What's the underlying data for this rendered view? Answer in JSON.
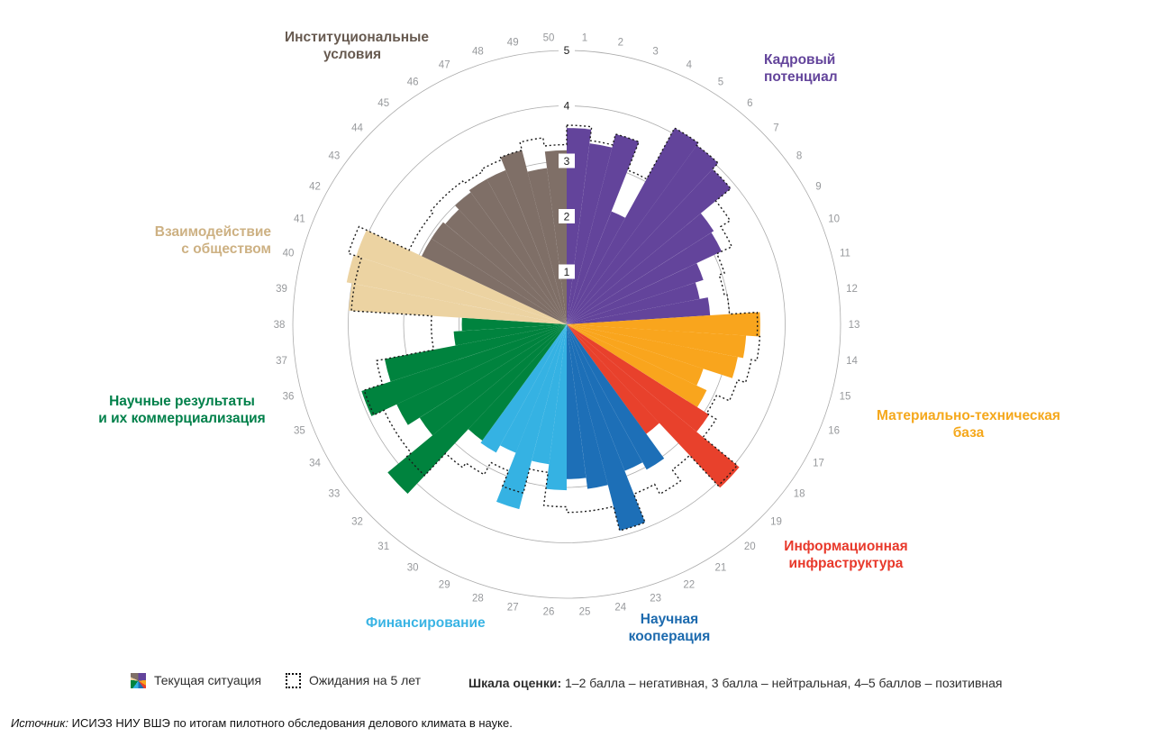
{
  "chart_data": {
    "type": "polar_bar",
    "description": "Rose chart: business climate in science, 50 indicators grouped in 8 areas, ratings 1-5",
    "sector_count": 50,
    "angle_per_sector": 7.2,
    "ring_labels": [
      "1",
      "2",
      "3",
      "4",
      "5"
    ],
    "ylim": [
      0,
      5
    ],
    "grid": "circles",
    "legend_position": "bottom",
    "series": [
      {
        "id": "current",
        "name": "Текущая ситуация",
        "style": "filled"
      },
      {
        "id": "expected",
        "name": "Ожидания на 5 лет",
        "style": "dotted-outline"
      }
    ],
    "groups": [
      {
        "id": "kadry",
        "label_lines": [
          "Кадровый",
          "потенциал"
        ],
        "color": "#63449B",
        "label_color": "#63449B",
        "sectors": [
          1,
          12
        ]
      },
      {
        "id": "material",
        "label_lines": [
          "Материально-техническая",
          "база"
        ],
        "color": "#F9A51D",
        "label_color": "#F5A81C",
        "sectors": [
          13,
          17
        ]
      },
      {
        "id": "inform",
        "label_lines": [
          "Информационная",
          "инфраструктура"
        ],
        "color": "#E8412C",
        "label_color": "#E8392B",
        "sectors": [
          18,
          20
        ]
      },
      {
        "id": "kooper",
        "label_lines": [
          "Научная",
          "кооперация"
        ],
        "color": "#1D6FB7",
        "label_color": "#1C6AAE",
        "sectors": [
          21,
          25
        ]
      },
      {
        "id": "finans",
        "label_lines": [
          "Финансирование"
        ],
        "color": "#35B2E3",
        "label_color": "#3AB4E4",
        "sectors": [
          26,
          30
        ]
      },
      {
        "id": "nauch",
        "label_lines": [
          "Научные результаты",
          "и их коммерциализация"
        ],
        "color": "#00833E",
        "label_color": "#00804A",
        "sectors": [
          31,
          38
        ]
      },
      {
        "id": "vzaim",
        "label_lines": [
          "Взаимодействие",
          "с обществом"
        ],
        "color": "#ECD3A2",
        "label_color": "#CDB183",
        "sectors": [
          39,
          41
        ]
      },
      {
        "id": "instit",
        "label_lines": [
          "Институциональные",
          "условия"
        ],
        "color": "#7F6F67",
        "label_color": "#675A50",
        "sectors": [
          42,
          50
        ]
      }
    ],
    "sectors": [
      {
        "n": 1,
        "current": 3.6,
        "expected": 3.65
      },
      {
        "n": 2,
        "current": 3.35,
        "expected": 3.4
      },
      {
        "n": 3,
        "current": 3.6,
        "expected": 3.6
      },
      {
        "n": 4,
        "current": 2.25,
        "expected": 3.05
      },
      {
        "n": 5,
        "current": 4.1,
        "expected": 4.1
      },
      {
        "n": 6,
        "current": 4.05,
        "expected": 4.05
      },
      {
        "n": 7,
        "current": 3.9,
        "expected": 3.9
      },
      {
        "n": 8,
        "current": 3.2,
        "expected": 3.55
      },
      {
        "n": 9,
        "current": 3.15,
        "expected": 3.35
      },
      {
        "n": 10,
        "current": 2.65,
        "expected": 3.05
      },
      {
        "n": 11,
        "current": 2.5,
        "expected": 2.95
      },
      {
        "n": 12,
        "current": 2.65,
        "expected": 3.0
      },
      {
        "n": 13,
        "current": 3.55,
        "expected": 3.5
      },
      {
        "n": 14,
        "current": 3.3,
        "expected": 3.55
      },
      {
        "n": 15,
        "current": 3.2,
        "expected": 3.45
      },
      {
        "n": 16,
        "current": 2.65,
        "expected": 3.3
      },
      {
        "n": 17,
        "current": 2.85,
        "expected": 3.05
      },
      {
        "n": 18,
        "current": 3.1,
        "expected": 3.25
      },
      {
        "n": 19,
        "current": 4.1,
        "expected": 4.05
      },
      {
        "n": 20,
        "current": 2.5,
        "expected": 3.3
      },
      {
        "n": 21,
        "current": 3.05,
        "expected": 3.55
      },
      {
        "n": 22,
        "current": 2.9,
        "expected": 3.35
      },
      {
        "n": 23,
        "current": 3.9,
        "expected": 3.9
      },
      {
        "n": 24,
        "current": 3.05,
        "expected": 3.45
      },
      {
        "n": 25,
        "current": 2.85,
        "expected": 3.45
      },
      {
        "n": 26,
        "current": 3.05,
        "expected": 3.35
      },
      {
        "n": 27,
        "current": 2.6,
        "expected": 2.75
      },
      {
        "n": 28,
        "current": 3.5,
        "expected": 3.2
      },
      {
        "n": 29,
        "current": 2.55,
        "expected": 2.9
      },
      {
        "n": 30,
        "current": 2.7,
        "expected": 3.15
      },
      {
        "n": 31,
        "current": 2.65,
        "expected": 3.25
      },
      {
        "n": 32,
        "current": 4.25,
        "expected": 3.8
      },
      {
        "n": 33,
        "current": 3.2,
        "expected": 3.7
      },
      {
        "n": 34,
        "current": 3.45,
        "expected": 3.7
      },
      {
        "n": 35,
        "current": 3.95,
        "expected": 3.9
      },
      {
        "n": 36,
        "current": 3.4,
        "expected": 3.55
      },
      {
        "n": 37,
        "current": 2.1,
        "expected": 2.5
      },
      {
        "n": 38,
        "current": 1.95,
        "expected": 2.5
      },
      {
        "n": 39,
        "current": 4.0,
        "expected": 3.95
      },
      {
        "n": 40,
        "current": 4.1,
        "expected": 3.95
      },
      {
        "n": 41,
        "current": 4.05,
        "expected": 4.2
      },
      {
        "n": 42,
        "current": 2.95,
        "expected": 3.2
      },
      {
        "n": 43,
        "current": 2.95,
        "expected": 3.2
      },
      {
        "n": 44,
        "current": 2.9,
        "expected": 3.25
      },
      {
        "n": 45,
        "current": 3.0,
        "expected": 3.25
      },
      {
        "n": 46,
        "current": 3.05,
        "expected": 3.2
      },
      {
        "n": 47,
        "current": 3.05,
        "expected": 3.25
      },
      {
        "n": 48,
        "current": 3.3,
        "expected": 3.3
      },
      {
        "n": 49,
        "current": 2.9,
        "expected": 3.45
      },
      {
        "n": 50,
        "current": 3.2,
        "expected": 3.3
      }
    ]
  },
  "legend": {
    "current_label": "Текущая ситуация",
    "expected_label": "Ожидания на 5 лет",
    "scale_title": "Шкала оценки:",
    "scale_text": " 1–2 балла – негативная, 3 балла – нейтральная, 4–5 баллов – позитивная"
  },
  "source": {
    "prefix": "Источник:",
    "text": " ИСИЭЗ НИУ ВШЭ по итогам пилотного обследования делового климата в науке."
  }
}
